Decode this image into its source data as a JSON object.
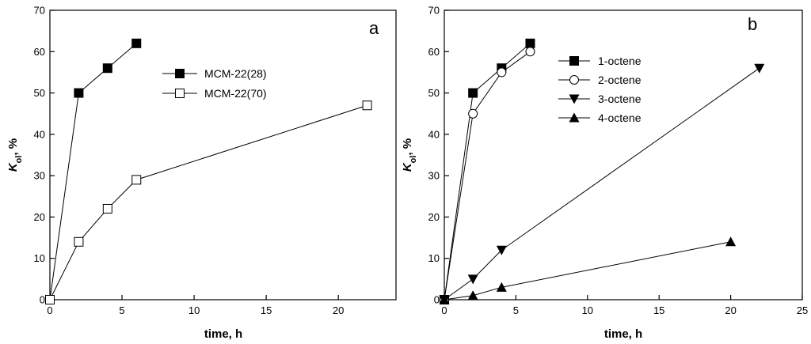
{
  "chart_data": [
    {
      "type": "line",
      "panel_label": "a",
      "xlabel": "time, h",
      "ylabel_main": "K",
      "ylabel_sub": "ol",
      "ylabel_unit": ", %",
      "xlim": [
        0,
        24
      ],
      "ylim": [
        0,
        70
      ],
      "xticks": [
        0,
        5,
        10,
        15,
        20
      ],
      "yticks": [
        0,
        10,
        20,
        30,
        40,
        50,
        60,
        70
      ],
      "legend_position": "top-center",
      "series": [
        {
          "name": "MCM-22(28)",
          "marker": "square-filled",
          "x": [
            0,
            2,
            4,
            6
          ],
          "y": [
            0,
            50,
            56,
            62
          ]
        },
        {
          "name": "MCM-22(70)",
          "marker": "square-open",
          "x": [
            0,
            2,
            4,
            6,
            22
          ],
          "y": [
            0,
            14,
            22,
            29,
            47
          ]
        }
      ]
    },
    {
      "type": "line",
      "panel_label": "b",
      "xlabel": "time, h",
      "ylabel_main": "K",
      "ylabel_sub": "ol",
      "ylabel_unit": ", %",
      "xlim": [
        0,
        25
      ],
      "ylim": [
        0,
        70
      ],
      "xticks": [
        0,
        5,
        10,
        15,
        20,
        25
      ],
      "yticks": [
        0,
        10,
        20,
        30,
        40,
        50,
        60,
        70
      ],
      "legend_position": "top-center",
      "series": [
        {
          "name": "1-octene",
          "marker": "square-filled",
          "x": [
            0,
            2,
            4,
            6
          ],
          "y": [
            0,
            50,
            56,
            62
          ]
        },
        {
          "name": "2-octene",
          "marker": "circle-open",
          "x": [
            0,
            2,
            4,
            6
          ],
          "y": [
            0,
            45,
            55,
            60
          ]
        },
        {
          "name": "3-octene",
          "marker": "triangle-down-filled",
          "x": [
            0,
            2,
            4,
            22
          ],
          "y": [
            0,
            5,
            12,
            56
          ]
        },
        {
          "name": "4-octene",
          "marker": "triangle-up-filled",
          "x": [
            0,
            2,
            4,
            20
          ],
          "y": [
            0,
            1,
            3,
            14
          ]
        }
      ]
    }
  ]
}
